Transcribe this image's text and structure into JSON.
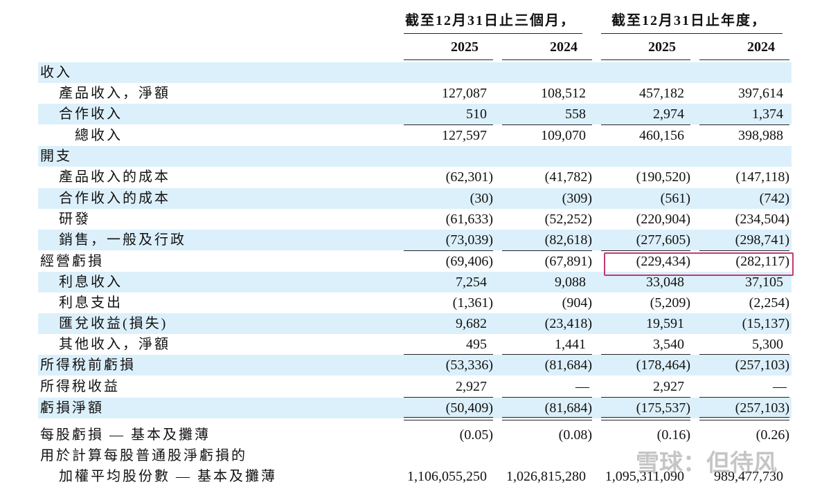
{
  "header": {
    "group1": "截至12月31日止三個月，",
    "group2": "截至12月31日止年度，",
    "years": [
      "2025",
      "2024",
      "2025",
      "2024"
    ]
  },
  "table": {
    "rows": [
      {
        "label": "收入"
      },
      {
        "label": "產品收入，淨額",
        "values": [
          "127,087",
          "108,512",
          "457,182",
          "397,614"
        ]
      },
      {
        "label": "合作收入",
        "values": [
          "510",
          "558",
          "2,974",
          "1,374"
        ]
      },
      {
        "label": "總收入",
        "values": [
          "127,597",
          "109,070",
          "460,156",
          "398,988"
        ]
      },
      {
        "label": "開支"
      },
      {
        "label": "產品收入的成本",
        "values": [
          "(62,301)",
          "(41,782)",
          "(190,520)",
          "(147,118)"
        ]
      },
      {
        "label": "合作收入的成本",
        "values": [
          "(30)",
          "(309)",
          "(561)",
          "(742)"
        ]
      },
      {
        "label": "研發",
        "values": [
          "(61,633)",
          "(52,252)",
          "(220,904)",
          "(234,504)"
        ]
      },
      {
        "label": "銷售，一般及行政",
        "values": [
          "(73,039)",
          "(82,618)",
          "(277,605)",
          "(298,741)"
        ]
      },
      {
        "label": "經營虧損",
        "values": [
          "(69,406)",
          "(67,891)",
          "(229,434)",
          "(282,117)"
        ]
      },
      {
        "label": "利息收入",
        "values": [
          "7,254",
          "9,088",
          "33,048",
          "37,105"
        ]
      },
      {
        "label": "利息支出",
        "values": [
          "(1,361)",
          "(904)",
          "(5,209)",
          "(2,254)"
        ]
      },
      {
        "label": "匯兌收益(損失)",
        "values": [
          "9,682",
          "(23,418)",
          "19,591",
          "(15,137)"
        ]
      },
      {
        "label": "其他收入，淨額",
        "values": [
          "495",
          "1,441",
          "3,540",
          "5,300"
        ]
      },
      {
        "label": "所得稅前虧損",
        "values": [
          "(53,336)",
          "(81,684)",
          "(178,464)",
          "(257,103)"
        ]
      },
      {
        "label": "所得稅收益",
        "values": [
          "2,927",
          "—",
          "2,927",
          "—"
        ]
      },
      {
        "label": "虧損淨額",
        "values": [
          "(50,409)",
          "(81,684)",
          "(175,537)",
          "(257,103)"
        ]
      },
      {
        "label": "每股虧損 — 基本及攤薄",
        "values": [
          "(0.05)",
          "(0.08)",
          "(0.16)",
          "(0.26)"
        ]
      },
      {
        "label": "用於計算每股普通股淨虧損的"
      },
      {
        "label": "加權平均股份數 — 基本及攤薄",
        "values": [
          "1,106,055,250",
          "1,026,815,280",
          "1,095,311,090",
          "989,477,730"
        ]
      }
    ]
  },
  "watermark": "雪球：但待风"
}
